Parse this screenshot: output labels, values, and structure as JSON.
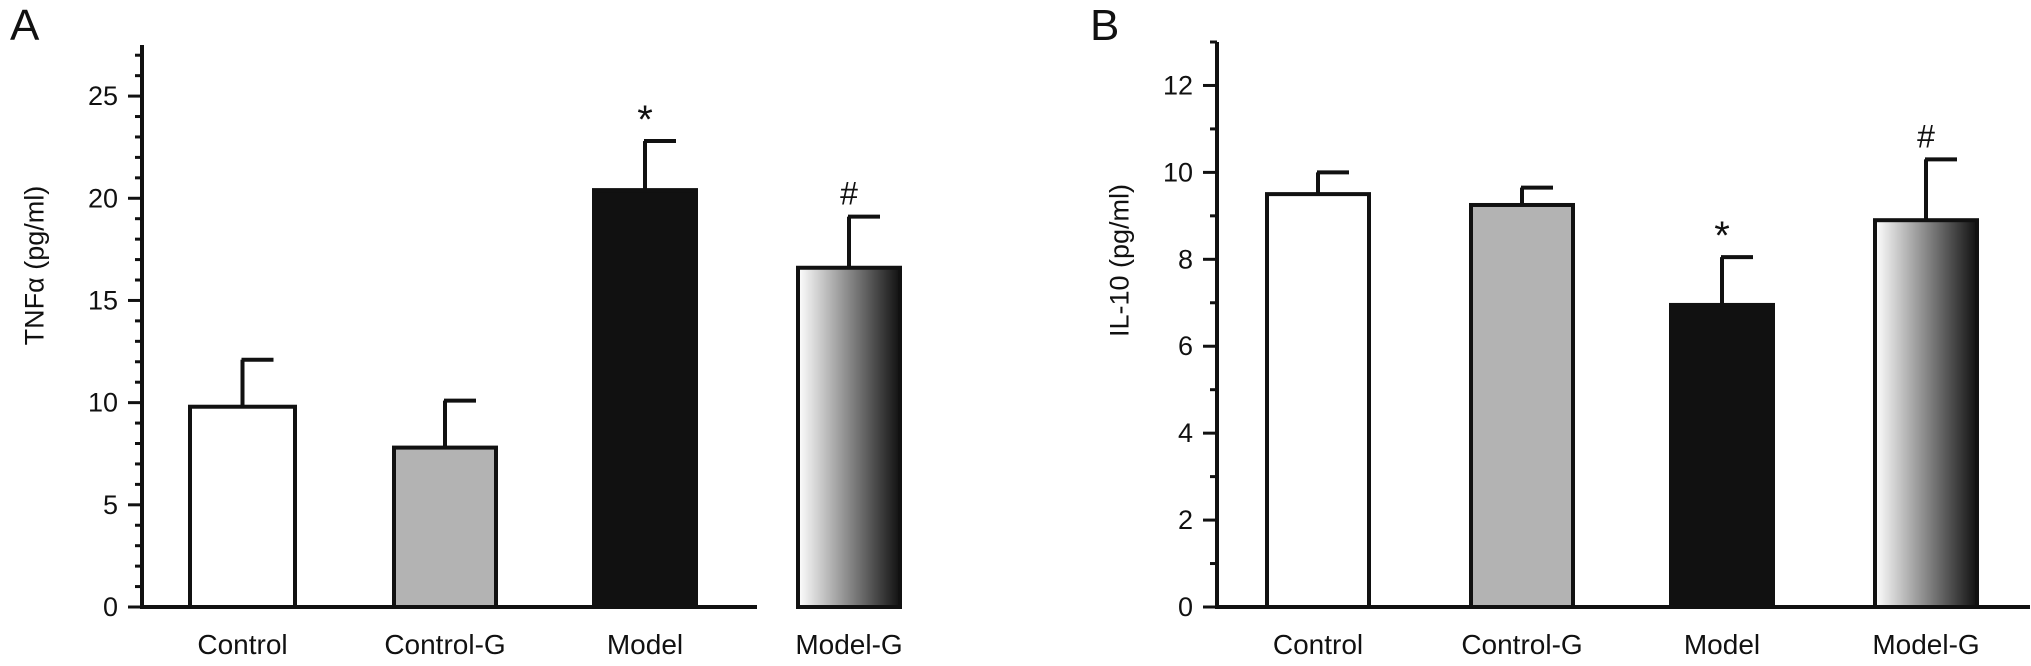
{
  "chart_data": [
    {
      "panel": "A",
      "type": "bar",
      "categories": [
        "Control",
        "Control-G",
        "Model",
        "Model-G"
      ],
      "values": [
        9.8,
        7.8,
        20.4,
        16.6
      ],
      "errors": [
        2.3,
        2.3,
        2.4,
        2.5
      ],
      "annotations": [
        "",
        "",
        "*",
        "#"
      ],
      "fills": [
        "#ffffff",
        "#b3b3b3",
        "#111111",
        "gradient"
      ],
      "xlabel": "",
      "ylabel": "TNFα (pg/ml)",
      "ylim": [
        0,
        27.5
      ],
      "yticks": [
        0,
        5,
        10,
        15,
        20,
        25
      ],
      "grid": false
    },
    {
      "panel": "B",
      "type": "bar",
      "categories": [
        "Control",
        "Control-G",
        "Model",
        "Model-G"
      ],
      "values": [
        9.5,
        9.25,
        6.95,
        8.9
      ],
      "errors": [
        0.5,
        0.4,
        1.1,
        1.4
      ],
      "annotations": [
        "",
        "",
        "*",
        "#"
      ],
      "fills": [
        "#ffffff",
        "#b3b3b3",
        "#111111",
        "gradient"
      ],
      "xlabel": "",
      "ylabel": "IL-10 (pg/ml)",
      "ylim": [
        0,
        13
      ],
      "yticks": [
        0,
        2,
        4,
        6,
        8,
        10,
        12
      ],
      "grid": false
    }
  ]
}
